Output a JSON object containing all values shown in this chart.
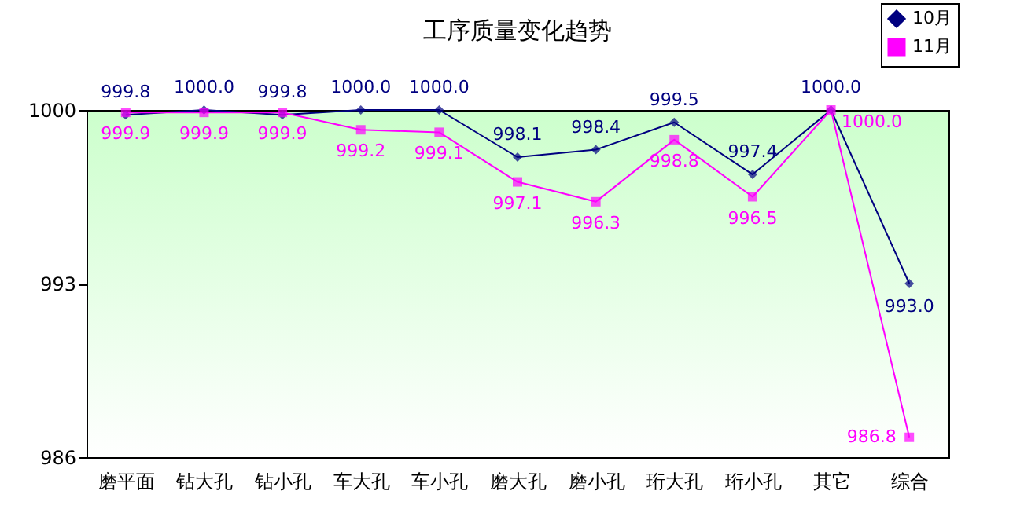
{
  "chart_data": {
    "type": "line",
    "title": "工序质量变化趋势",
    "categories": [
      "磨平面",
      "钻大孔",
      "钻小孔",
      "车大孔",
      "车小孔",
      "磨大孔",
      "磨小孔",
      "珩大孔",
      "珩小孔",
      "其它",
      "综合"
    ],
    "series": [
      {
        "name": "10月",
        "color": "#000080",
        "marker": "diamond",
        "values": [
          999.8,
          1000.0,
          999.8,
          1000.0,
          1000.0,
          998.1,
          998.4,
          999.5,
          997.4,
          1000.0,
          993.0
        ],
        "value_labels": [
          "999.8",
          "1000.0",
          "999.8",
          "1000.0",
          "1000.0",
          "998.1",
          "998.4",
          "999.5",
          "997.4",
          "1000.0",
          "993.0"
        ]
      },
      {
        "name": "11月",
        "color": "#ff00ff",
        "marker": "square",
        "values": [
          999.9,
          999.9,
          999.9,
          999.2,
          999.1,
          997.1,
          996.3,
          998.8,
          996.5,
          1000.0,
          986.8
        ],
        "value_labels": [
          "999.9",
          "999.9",
          "999.9",
          "999.2",
          "999.1",
          "997.1",
          "996.3",
          "998.8",
          "996.5",
          "1000.0",
          "986.8"
        ]
      }
    ],
    "ylim": [
      986,
      1000
    ],
    "yticks": [
      986,
      993,
      {
        "value": 1000,
        "label": "1000"
      }
    ],
    "legend": "top right",
    "grid": false
  }
}
